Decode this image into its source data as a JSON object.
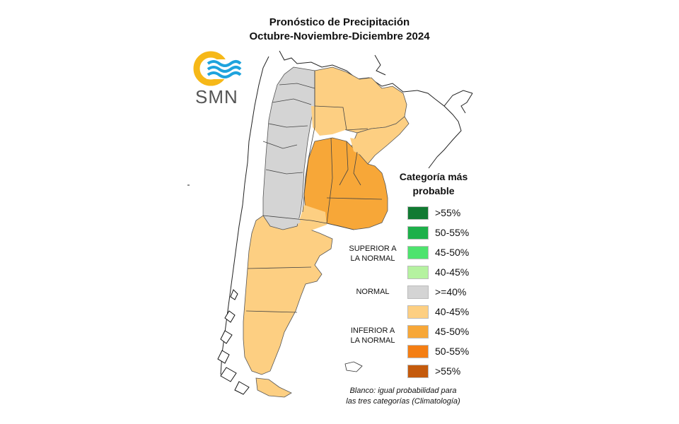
{
  "title_line1": "Pronóstico de Precipitación",
  "title_line2": "Octubre-Noviembre-Diciembre 2024",
  "logo_text": "SMN",
  "legend": {
    "title_line1": "Categoría más",
    "title_line2": "probable",
    "items": [
      {
        "label": ">55%",
        "color": "#117a32"
      },
      {
        "label": "50-55%",
        "color": "#1db04a"
      },
      {
        "label": "45-50%",
        "color": "#4ee36e"
      },
      {
        "label": "40-45%",
        "color": "#b5f2a0"
      },
      {
        "label": ">=40%",
        "color": "#d4d4d4"
      },
      {
        "label": "40-45%",
        "color": "#fdcf82"
      },
      {
        "label": "45-50%",
        "color": "#f7a738"
      },
      {
        "label": "50-55%",
        "color": "#f47e13"
      },
      {
        "label": ">55%",
        "color": "#c45a0c"
      }
    ],
    "categories": {
      "superior_line1": "SUPERIOR A",
      "superior_line2": "LA NORMAL",
      "normal": "NORMAL",
      "inferior_line1": "INFERIOR A",
      "inferior_line2": "LA NORMAL"
    },
    "note_line1": "Blanco: igual probabilidad para",
    "note_line2": "las tres categorías (Climatología)"
  }
}
